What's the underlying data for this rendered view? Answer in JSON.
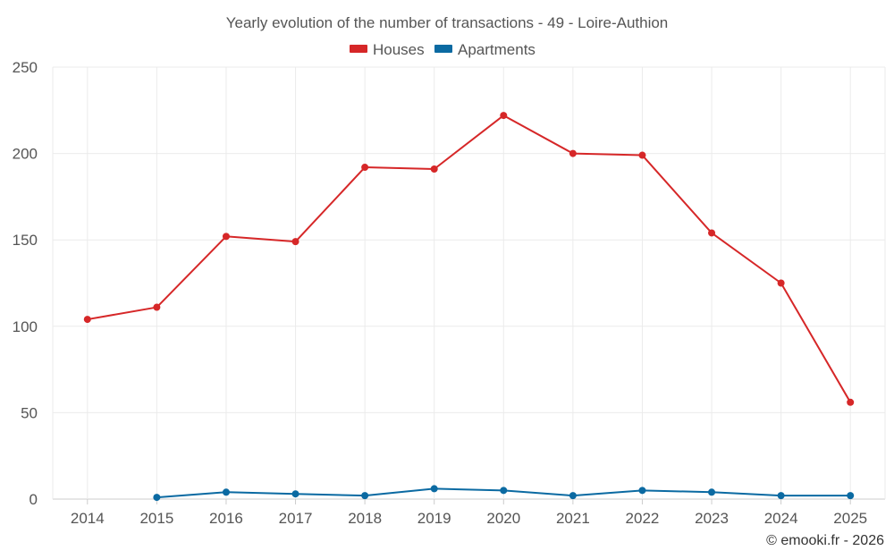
{
  "chart_data": {
    "type": "line",
    "title": "Yearly evolution of the number of transactions - 49 - Loire-Authion",
    "x": [
      "2014",
      "2015",
      "2016",
      "2017",
      "2018",
      "2019",
      "2020",
      "2021",
      "2022",
      "2023",
      "2024",
      "2025"
    ],
    "series": [
      {
        "name": "Houses",
        "color": "#d62728",
        "values": [
          104,
          111,
          152,
          149,
          192,
          191,
          222,
          200,
          199,
          154,
          125,
          56
        ]
      },
      {
        "name": "Apartments",
        "color": "#0b6aa2",
        "values": [
          null,
          1,
          4,
          3,
          2,
          6,
          5,
          2,
          5,
          4,
          2,
          2
        ]
      }
    ],
    "ylim": [
      0,
      250
    ],
    "yticks": [
      "0",
      "50",
      "100",
      "150",
      "200",
      "250"
    ],
    "xlabel": "",
    "ylabel": "",
    "grid": true,
    "legend": "top-center"
  },
  "credit": "© emooki.fr - 2026"
}
